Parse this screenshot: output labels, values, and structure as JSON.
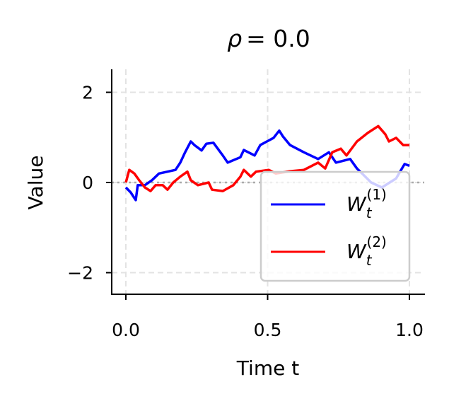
{
  "chart_data": {
    "type": "line",
    "title_symbol": "ρ",
    "title_value": "= 0.0",
    "xlabel": "Time t",
    "ylabel": "Value",
    "xlim": [
      -0.05,
      1.05
    ],
    "ylim": [
      -2.5,
      2.5
    ],
    "xticks": [
      0.0,
      0.5,
      1.0
    ],
    "xtick_labels": [
      "0.0",
      "0.5",
      "1.0"
    ],
    "yticks": [
      -2,
      0,
      2
    ],
    "ytick_labels": [
      "−2",
      "0",
      "2"
    ],
    "grid": true,
    "reference_line_y": 0,
    "legend_placement": "lower right",
    "series": [
      {
        "name_base": "W",
        "name_sub": "t",
        "name_sup": "(1)",
        "color": "#0000ff",
        "x": [
          0,
          0.017,
          0.035,
          0.042,
          0.067,
          0.092,
          0.117,
          0.147,
          0.175,
          0.192,
          0.209,
          0.229,
          0.242,
          0.267,
          0.284,
          0.309,
          0.342,
          0.359,
          0.404,
          0.416,
          0.454,
          0.474,
          0.521,
          0.541,
          0.554,
          0.579,
          0.628,
          0.678,
          0.716,
          0.741,
          0.791,
          0.815,
          0.865,
          0.903,
          0.953,
          0.983,
          1.0
        ],
        "y": [
          -0.11,
          -0.22,
          -0.39,
          -0.06,
          -0.06,
          0.05,
          0.2,
          0.24,
          0.28,
          0.44,
          0.67,
          0.91,
          0.83,
          0.71,
          0.86,
          0.88,
          0.6,
          0.44,
          0.56,
          0.72,
          0.6,
          0.83,
          0.99,
          1.15,
          1.02,
          0.83,
          0.67,
          0.52,
          0.67,
          0.44,
          0.52,
          0.31,
          0.0,
          -0.11,
          0.09,
          0.41,
          0.37
        ]
      },
      {
        "name_base": "W",
        "name_sub": "t",
        "name_sup": "(2)",
        "color": "#ff0000",
        "x": [
          0,
          0.012,
          0.03,
          0.047,
          0.067,
          0.087,
          0.105,
          0.13,
          0.147,
          0.167,
          0.192,
          0.217,
          0.229,
          0.254,
          0.292,
          0.304,
          0.342,
          0.379,
          0.404,
          0.416,
          0.441,
          0.459,
          0.504,
          0.529,
          0.579,
          0.628,
          0.678,
          0.703,
          0.728,
          0.758,
          0.778,
          0.815,
          0.853,
          0.89,
          0.915,
          0.928,
          0.953,
          0.978,
          1.0
        ],
        "y": [
          0,
          0.28,
          0.2,
          0.05,
          -0.11,
          -0.19,
          -0.06,
          -0.06,
          -0.16,
          0,
          0.13,
          0.24,
          0.05,
          -0.06,
          0,
          -0.16,
          -0.19,
          -0.06,
          0.13,
          0.28,
          0.13,
          0.24,
          0.28,
          0.2,
          0.25,
          0.28,
          0.44,
          0.31,
          0.67,
          0.75,
          0.6,
          0.91,
          1.1,
          1.25,
          1.07,
          0.91,
          0.99,
          0.83,
          0.83
        ]
      }
    ]
  }
}
